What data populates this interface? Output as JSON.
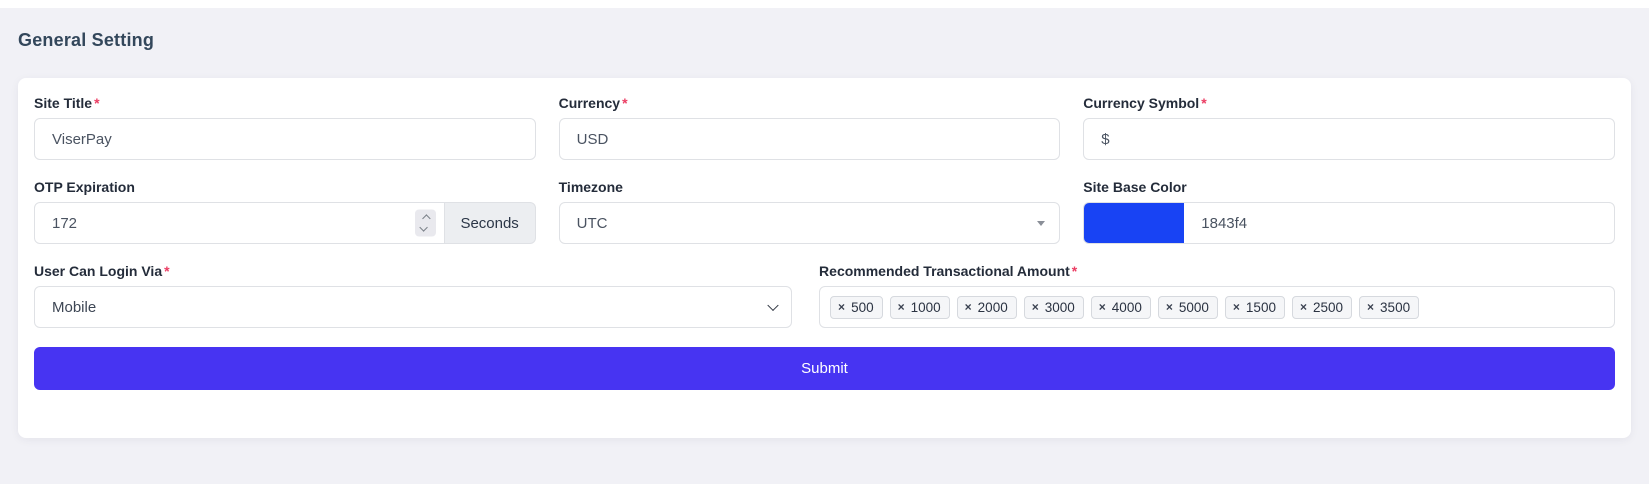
{
  "page": {
    "title": "General Setting"
  },
  "colors": {
    "accent": "#4734f2",
    "site_base_color": "#1843f4",
    "required_mark": "#eb3d63"
  },
  "form": {
    "required_mark": "*",
    "fields": {
      "site_title": {
        "label": "Site Title",
        "required": true,
        "value": "ViserPay"
      },
      "currency": {
        "label": "Currency",
        "required": true,
        "value": "USD"
      },
      "currency_symbol": {
        "label": "Currency Symbol",
        "required": true,
        "value": "$"
      },
      "otp_expiration": {
        "label": "OTP Expiration",
        "required": false,
        "value": "172",
        "addon": "Seconds"
      },
      "timezone": {
        "label": "Timezone",
        "required": false,
        "value": "UTC"
      },
      "site_base_color": {
        "label": "Site Base Color",
        "required": false,
        "value": "1843f4"
      },
      "login_via": {
        "label": "User Can Login Via",
        "required": true,
        "value": "Mobile"
      },
      "recommended_amounts": {
        "label": "Recommended Transactional Amount",
        "required": true,
        "remove_icon": "×",
        "tags": [
          "500",
          "1000",
          "2000",
          "3000",
          "4000",
          "5000",
          "1500",
          "2500",
          "3500"
        ]
      }
    },
    "submit_label": "Submit"
  }
}
